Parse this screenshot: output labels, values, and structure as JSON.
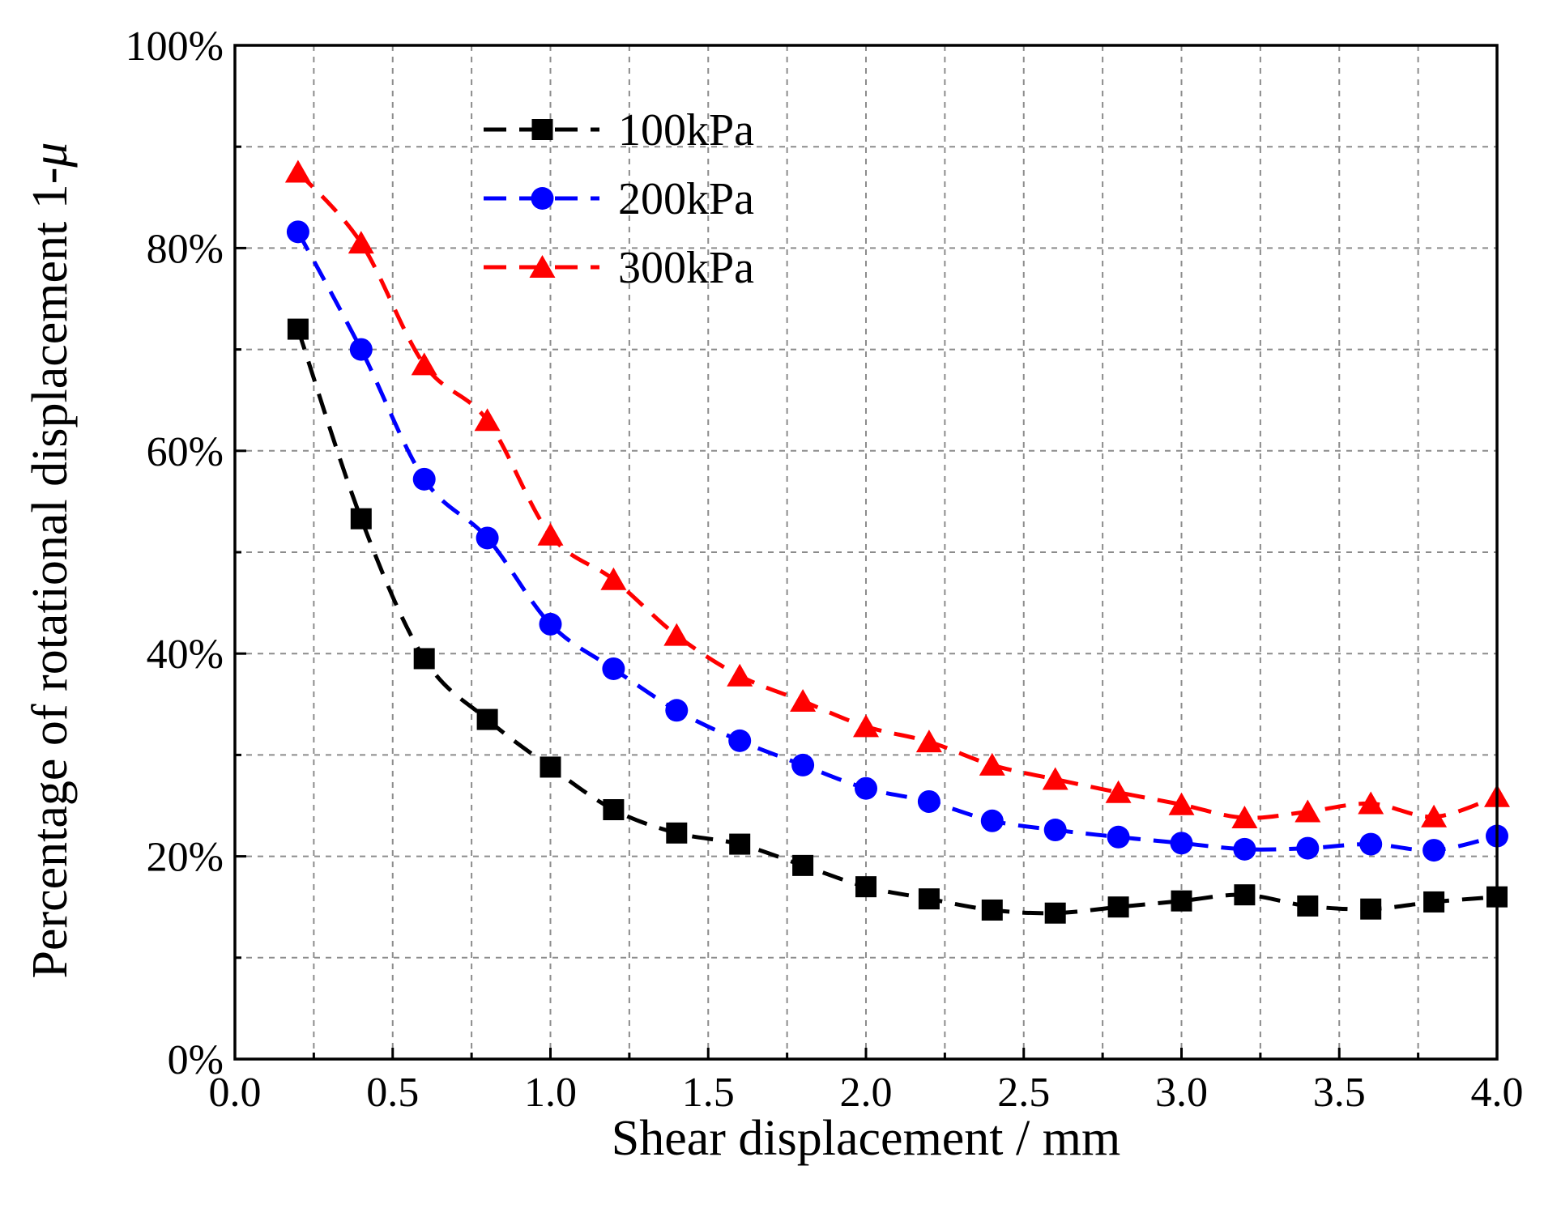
{
  "chart_data": {
    "type": "line",
    "title": "",
    "xlabel": "Shear displacement / mm",
    "ylabel": "Percentage of rotational displacement 1-",
    "ylabel_symbol": "μ",
    "xlim": [
      0,
      4.0
    ],
    "ylim": [
      0,
      100
    ],
    "xticks": [
      0.0,
      0.5,
      1.0,
      1.5,
      2.0,
      2.5,
      3.0,
      3.5,
      4.0
    ],
    "xtick_labels": [
      "0.0",
      "0.5",
      "1.0",
      "1.5",
      "2.0",
      "2.5",
      "3.0",
      "3.5",
      "4.0"
    ],
    "yticks": [
      0,
      20,
      40,
      60,
      80,
      100
    ],
    "ytick_labels": [
      "0%",
      "20%",
      "40%",
      "60%",
      "80%",
      "100%"
    ],
    "x_minor_grid": [
      0.25,
      0.75,
      1.25,
      1.75,
      2.25,
      2.75,
      3.25,
      3.75
    ],
    "y_minor_grid": [
      10,
      30,
      50,
      70,
      90
    ],
    "grid": true,
    "legend_position": "top-left",
    "x": [
      0.2,
      0.4,
      0.6,
      0.8,
      1.0,
      1.2,
      1.4,
      1.6,
      1.8,
      2.0,
      2.2,
      2.4,
      2.6,
      2.8,
      3.0,
      3.2,
      3.4,
      3.6,
      3.8,
      4.0
    ],
    "series": [
      {
        "name": "100kPa",
        "color": "#000000",
        "marker": "square",
        "values": [
          72.0,
          53.3,
          39.5,
          33.5,
          28.8,
          24.6,
          22.3,
          21.2,
          19.1,
          17.0,
          15.8,
          14.7,
          14.4,
          15.0,
          15.6,
          16.2,
          15.1,
          14.8,
          15.5,
          16.0
        ]
      },
      {
        "name": "200kPa",
        "color": "#0000ff",
        "marker": "circle",
        "values": [
          81.6,
          70.0,
          57.2,
          51.4,
          42.9,
          38.5,
          34.4,
          31.4,
          29.0,
          26.7,
          25.4,
          23.5,
          22.6,
          21.9,
          21.3,
          20.7,
          20.8,
          21.2,
          20.6,
          22.0
        ]
      },
      {
        "name": "300kPa",
        "color": "#ff0000",
        "marker": "triangle",
        "values": [
          87.5,
          80.5,
          68.5,
          63.0,
          51.7,
          47.3,
          41.8,
          37.8,
          35.3,
          32.8,
          31.3,
          29.0,
          27.6,
          26.3,
          25.1,
          23.8,
          24.4,
          25.2,
          23.9,
          25.9
        ]
      }
    ]
  }
}
